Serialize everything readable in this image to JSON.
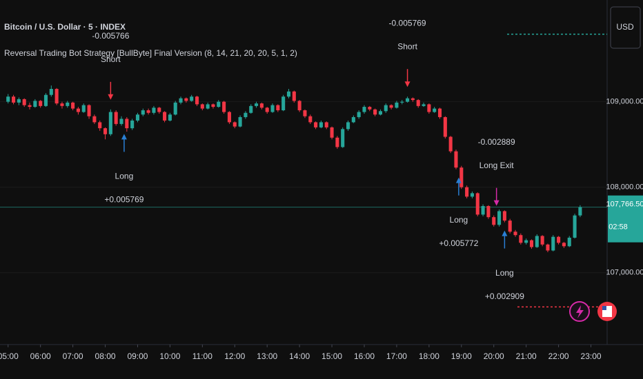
{
  "chart_data": {
    "type": "candlestick",
    "title": "Bitcoin / U.S. Dollar · 5 · INDEX",
    "subtitle": "Reversal Trading Bot Strategy [BullByte] Final Version (8, 14, 21, 20, 20, 5, 1, 2)",
    "currency": "USD",
    "up_color": "#26a69a",
    "down_color": "#f23645",
    "xlim": [
      285,
      1410
    ],
    "ylim": [
      106160,
      110190
    ],
    "xticks": [
      {
        "value": 300,
        "label": "05:00"
      },
      {
        "value": 360,
        "label": "06:00"
      },
      {
        "value": 420,
        "label": "07:00"
      },
      {
        "value": 480,
        "label": "08:00"
      },
      {
        "value": 540,
        "label": "09:00"
      },
      {
        "value": 600,
        "label": "10:00"
      },
      {
        "value": 660,
        "label": "11:00"
      },
      {
        "value": 720,
        "label": "12:00"
      },
      {
        "value": 780,
        "label": "13:00"
      },
      {
        "value": 840,
        "label": "14:00"
      },
      {
        "value": 900,
        "label": "15:00"
      },
      {
        "value": 960,
        "label": "16:00"
      },
      {
        "value": 1020,
        "label": "17:00"
      },
      {
        "value": 1080,
        "label": "18:00"
      },
      {
        "value": 1140,
        "label": "19:00"
      },
      {
        "value": 1200,
        "label": "20:00"
      },
      {
        "value": 1260,
        "label": "21:00"
      },
      {
        "value": 1320,
        "label": "22:00"
      },
      {
        "value": 1380,
        "label": "23:00"
      }
    ],
    "yticks": [
      {
        "value": 109000,
        "label": "109,000.00"
      },
      {
        "value": 108000,
        "label": "108,000.00"
      },
      {
        "value": 107000,
        "label": "107,000.00"
      }
    ],
    "last_price": {
      "value": 107766.5,
      "label": "107,766.50"
    },
    "countdown": "02:58",
    "levels": [
      {
        "value": 109790,
        "color": "#26a69a"
      },
      {
        "value": 106600,
        "color": "#f23645"
      }
    ],
    "x": [
      300,
      310,
      320,
      330,
      340,
      350,
      360,
      370,
      380,
      390,
      400,
      410,
      420,
      430,
      440,
      450,
      460,
      470,
      480,
      490,
      500,
      510,
      520,
      530,
      540,
      550,
      560,
      570,
      580,
      590,
      600,
      610,
      620,
      630,
      640,
      650,
      660,
      670,
      680,
      690,
      700,
      710,
      720,
      730,
      740,
      750,
      760,
      770,
      780,
      790,
      800,
      810,
      820,
      830,
      840,
      850,
      860,
      870,
      880,
      890,
      900,
      910,
      920,
      930,
      940,
      950,
      960,
      970,
      980,
      990,
      1000,
      1010,
      1020,
      1030,
      1040,
      1050,
      1060,
      1070,
      1080,
      1090,
      1100,
      1110,
      1120,
      1130,
      1140,
      1150,
      1160,
      1170,
      1180,
      1190,
      1200,
      1210,
      1220,
      1230,
      1240,
      1250,
      1260,
      1270,
      1280,
      1290,
      1300,
      1310,
      1320,
      1330,
      1340,
      1350,
      1360
    ],
    "ohlc": [
      [
        109000,
        109090,
        108980,
        109060
      ],
      [
        109060,
        109080,
        108970,
        108990
      ],
      [
        108990,
        109050,
        108960,
        109030
      ],
      [
        109030,
        109040,
        108940,
        108960
      ],
      [
        108960,
        108990,
        108910,
        108940
      ],
      [
        108940,
        109030,
        108930,
        109010
      ],
      [
        109010,
        109020,
        108930,
        108950
      ],
      [
        108950,
        109100,
        108940,
        109080
      ],
      [
        109080,
        109190,
        109060,
        109150
      ],
      [
        109150,
        109160,
        108960,
        108980
      ],
      [
        108980,
        109000,
        108920,
        108950
      ],
      [
        108950,
        109010,
        108930,
        108990
      ],
      [
        108990,
        109000,
        108900,
        108920
      ],
      [
        108920,
        108940,
        108850,
        108880
      ],
      [
        108880,
        108980,
        108870,
        108960
      ],
      [
        108960,
        108970,
        108800,
        108830
      ],
      [
        108830,
        108850,
        108740,
        108760
      ],
      [
        108760,
        108780,
        108660,
        108690
      ],
      [
        108690,
        108700,
        108560,
        108620
      ],
      [
        108620,
        108910,
        108600,
        108880
      ],
      [
        108880,
        108900,
        108720,
        108740
      ],
      [
        108740,
        108830,
        108720,
        108800
      ],
      [
        108800,
        108820,
        108650,
        108690
      ],
      [
        108690,
        108800,
        108670,
        108780
      ],
      [
        108780,
        108870,
        108760,
        108850
      ],
      [
        108850,
        108920,
        108830,
        108900
      ],
      [
        108900,
        108920,
        108850,
        108870
      ],
      [
        108870,
        108950,
        108850,
        108930
      ],
      [
        108930,
        108940,
        108860,
        108880
      ],
      [
        108880,
        108890,
        108760,
        108780
      ],
      [
        108780,
        108870,
        108770,
        108850
      ],
      [
        108850,
        109010,
        108840,
        108990
      ],
      [
        108990,
        109060,
        108970,
        109040
      ],
      [
        109040,
        109050,
        108990,
        109010
      ],
      [
        109010,
        109080,
        109000,
        109060
      ],
      [
        109060,
        109070,
        108950,
        108970
      ],
      [
        108970,
        108980,
        108900,
        108920
      ],
      [
        108920,
        108990,
        108910,
        108970
      ],
      [
        108970,
        108980,
        108920,
        108940
      ],
      [
        108940,
        109020,
        108930,
        109000
      ],
      [
        109000,
        109010,
        108860,
        108880
      ],
      [
        108880,
        108890,
        108740,
        108760
      ],
      [
        108760,
        108770,
        108690,
        108710
      ],
      [
        108710,
        108840,
        108700,
        108820
      ],
      [
        108820,
        108890,
        108800,
        108870
      ],
      [
        108870,
        108970,
        108860,
        108950
      ],
      [
        108950,
        109000,
        108930,
        108980
      ],
      [
        108980,
        108990,
        108910,
        108930
      ],
      [
        108930,
        108940,
        108860,
        108880
      ],
      [
        108880,
        108980,
        108870,
        108960
      ],
      [
        108960,
        108970,
        108880,
        108900
      ],
      [
        108900,
        109080,
        108890,
        109060
      ],
      [
        109060,
        109150,
        109040,
        109120
      ],
      [
        109120,
        109130,
        108990,
        109010
      ],
      [
        109010,
        109020,
        108880,
        108900
      ],
      [
        108900,
        108910,
        108810,
        108830
      ],
      [
        108830,
        108850,
        108740,
        108760
      ],
      [
        108760,
        108770,
        108680,
        108700
      ],
      [
        108700,
        108780,
        108690,
        108760
      ],
      [
        108760,
        108770,
        108680,
        108700
      ],
      [
        108700,
        108710,
        108560,
        108580
      ],
      [
        108580,
        108600,
        108450,
        108470
      ],
      [
        108470,
        108700,
        108460,
        108680
      ],
      [
        108680,
        108780,
        108660,
        108760
      ],
      [
        108760,
        108840,
        108750,
        108820
      ],
      [
        108820,
        108900,
        108800,
        108880
      ],
      [
        108880,
        108960,
        108860,
        108940
      ],
      [
        108940,
        108950,
        108890,
        108910
      ],
      [
        108910,
        108920,
        108830,
        108850
      ],
      [
        108850,
        108910,
        108840,
        108890
      ],
      [
        108890,
        108980,
        108870,
        108960
      ],
      [
        108960,
        108970,
        108910,
        108930
      ],
      [
        108930,
        109010,
        108920,
        108990
      ],
      [
        108990,
        109020,
        108970,
        109000
      ],
      [
        109000,
        109060,
        108990,
        109040
      ],
      [
        109040,
        109050,
        109000,
        109020
      ],
      [
        109020,
        109030,
        108930,
        108950
      ],
      [
        108950,
        108990,
        108940,
        108970
      ],
      [
        108970,
        108980,
        108860,
        108880
      ],
      [
        108880,
        108940,
        108870,
        108920
      ],
      [
        108920,
        108930,
        108800,
        108820
      ],
      [
        108820,
        108830,
        108570,
        108590
      ],
      [
        108590,
        108600,
        108400,
        108420
      ],
      [
        108420,
        108440,
        108210,
        108230
      ],
      [
        108230,
        108250,
        107980,
        108000
      ],
      [
        108000,
        108020,
        107870,
        107890
      ],
      [
        107890,
        107950,
        107870,
        107930
      ],
      [
        107930,
        107940,
        107660,
        107680
      ],
      [
        107680,
        107800,
        107660,
        107780
      ],
      [
        107780,
        107790,
        107630,
        107650
      ],
      [
        107650,
        107670,
        107540,
        107560
      ],
      [
        107560,
        107740,
        107540,
        107720
      ],
      [
        107720,
        107730,
        107590,
        107610
      ],
      [
        107610,
        107630,
        107460,
        107480
      ],
      [
        107480,
        107500,
        107420,
        107440
      ],
      [
        107440,
        107460,
        107330,
        107350
      ],
      [
        107350,
        107400,
        107330,
        107380
      ],
      [
        107380,
        107390,
        107280,
        107300
      ],
      [
        107300,
        107450,
        107290,
        107430
      ],
      [
        107430,
        107440,
        107310,
        107330
      ],
      [
        107330,
        107340,
        107240,
        107260
      ],
      [
        107260,
        107440,
        107250,
        107420
      ],
      [
        107420,
        107430,
        107330,
        107350
      ],
      [
        107350,
        107360,
        107290,
        107310
      ],
      [
        107310,
        107430,
        107300,
        107410
      ],
      [
        107410,
        107690,
        107400,
        107670
      ],
      [
        107670,
        107790,
        107650,
        107766.5
      ]
    ],
    "signals": [
      {
        "label": "Short",
        "profit": "-0.005766",
        "x": 490,
        "side": "above",
        "color": "#f23645"
      },
      {
        "label": "Long",
        "profit": "+0.005769",
        "x": 515,
        "side": "below",
        "color": "#2a7fd4"
      },
      {
        "label": "Short",
        "profit": "-0.005769",
        "x": 1040,
        "side": "above",
        "color": "#f23645"
      },
      {
        "label": "Long",
        "profit": "+0.005772",
        "x": 1135,
        "side": "below",
        "color": "#2a7fd4"
      },
      {
        "label": "Long Exit",
        "profit": "-0.002889",
        "x": 1205,
        "side": "above",
        "color": "#d62aa8"
      },
      {
        "label": "Long",
        "profit": "+0.002909",
        "x": 1220,
        "side": "below",
        "color": "#2a7fd4"
      }
    ]
  }
}
